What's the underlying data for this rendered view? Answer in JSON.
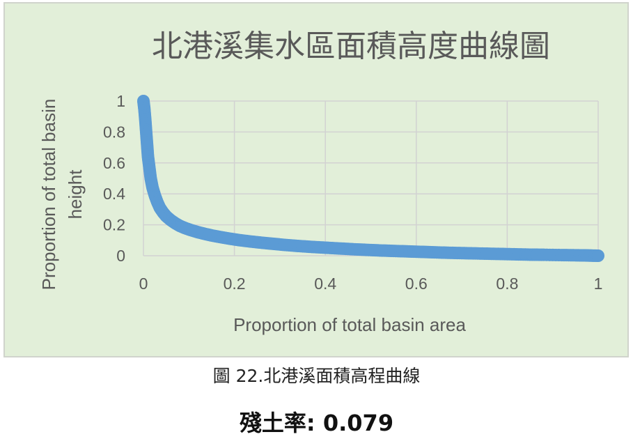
{
  "chart_data": {
    "type": "scatter",
    "title": "北港溪集水區面積高度曲線圖",
    "xlabel": "Proportion of total basin area",
    "ylabel": "Proportion of total basin height",
    "xlim": [
      0,
      1
    ],
    "ylim": [
      0,
      1
    ],
    "x_ticks": [
      "0",
      "0.2",
      "0.4",
      "0.6",
      "0.8",
      "1"
    ],
    "y_ticks": [
      "0",
      "0.2",
      "0.4",
      "0.6",
      "0.8",
      "1"
    ],
    "grid": true,
    "legend": "none",
    "marker_color": "#5b9bd5",
    "series": [
      {
        "x": [
          0.0,
          0.002,
          0.004,
          0.006,
          0.008,
          0.01,
          0.013,
          0.016,
          0.02,
          0.025,
          0.03,
          0.036,
          0.043,
          0.05,
          0.06,
          0.07,
          0.08,
          0.092,
          0.105,
          0.12,
          0.135,
          0.15,
          0.17,
          0.19,
          0.21,
          0.235,
          0.26,
          0.285,
          0.31,
          0.34,
          0.37,
          0.4,
          0.43,
          0.46,
          0.49,
          0.52,
          0.55,
          0.58,
          0.61,
          0.64,
          0.67,
          0.7,
          0.73,
          0.76,
          0.79,
          0.82,
          0.85,
          0.88,
          0.92,
          0.95,
          0.97,
          0.985,
          1.0
        ],
        "y": [
          1.0,
          0.95,
          0.88,
          0.8,
          0.72,
          0.64,
          0.57,
          0.5,
          0.44,
          0.39,
          0.35,
          0.31,
          0.28,
          0.255,
          0.23,
          0.21,
          0.193,
          0.178,
          0.165,
          0.152,
          0.141,
          0.131,
          0.12,
          0.11,
          0.101,
          0.092,
          0.084,
          0.077,
          0.07,
          0.063,
          0.057,
          0.052,
          0.047,
          0.042,
          0.038,
          0.034,
          0.031,
          0.028,
          0.025,
          0.022,
          0.019,
          0.017,
          0.015,
          0.013,
          0.011,
          0.009,
          0.007,
          0.006,
          0.004,
          0.003,
          0.002,
          0.001,
          0.0
        ]
      }
    ]
  },
  "caption": "圖 22.北港溪面積高程曲線",
  "ratio": {
    "label": "殘土率:",
    "value": "0.079"
  }
}
